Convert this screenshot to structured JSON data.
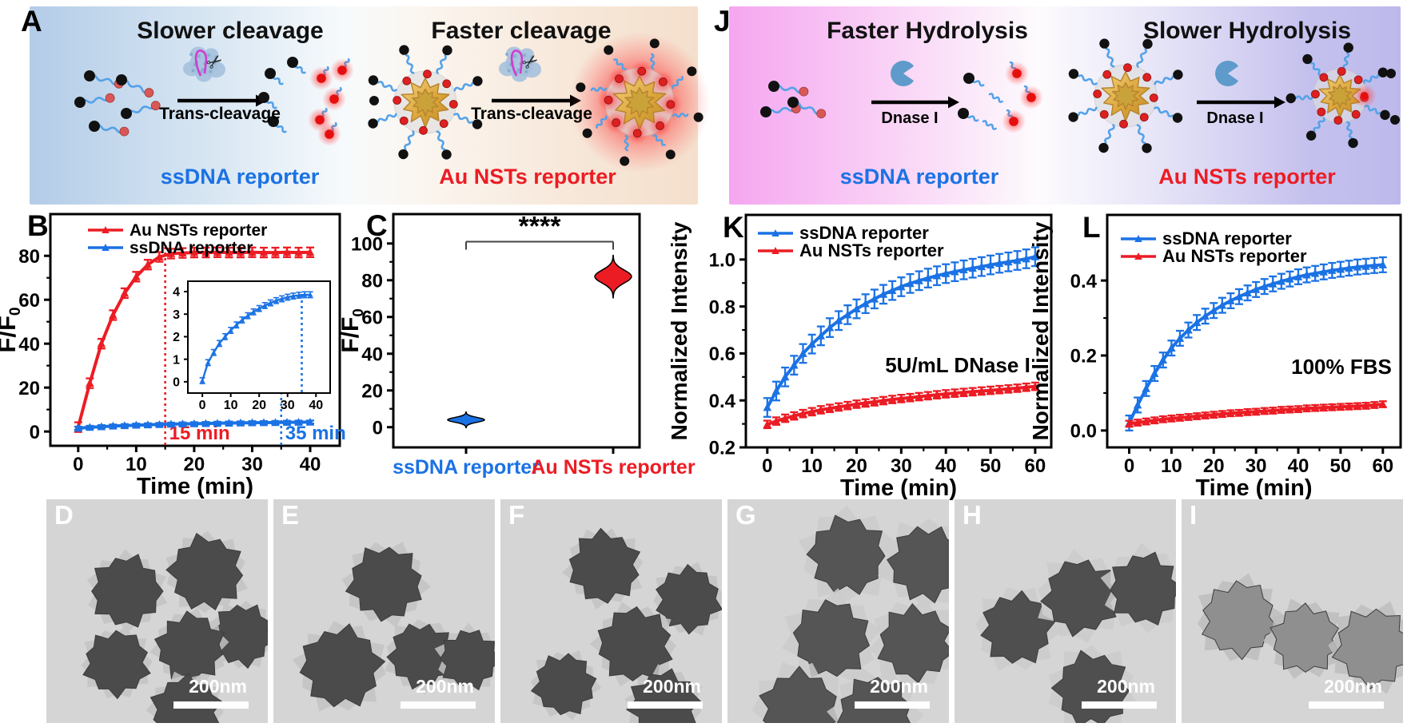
{
  "colors": {
    "blue": "#1b72e4",
    "red": "#ec1c24",
    "black": "#000000",
    "gold": "#dca63c",
    "glow_red": "#ff2020"
  },
  "panel_a": {
    "label": "A",
    "title_left": "Slower cleavage",
    "title_right": "Faster cleavage",
    "arrow_left": "Trans-cleavage",
    "arrow_right": "Trans-cleavage",
    "bottom_left": "ssDNA reporter",
    "bottom_right": "Au NSTs reporter"
  },
  "panel_j": {
    "label": "J",
    "title_left": "Faster Hydrolysis",
    "title_right": "Slower Hydrolysis",
    "arrow_left": "Dnase I",
    "arrow_right": "Dnase I",
    "bottom_left": "ssDNA reporter",
    "bottom_right": "Au NSTs reporter"
  },
  "chart_data": [
    {
      "id": "B",
      "type": "line",
      "panel_label": "B",
      "xlabel": "Time (min)",
      "ylabel": "F/F0",
      "xlim": [
        -4.8,
        45.1
      ],
      "ylim": [
        -6.5,
        99
      ],
      "xticks": [
        0,
        10,
        20,
        30,
        40
      ],
      "yticks": [
        0,
        20,
        40,
        60,
        80
      ],
      "x": [
        0,
        2,
        4,
        6,
        8,
        10,
        12,
        14,
        16,
        18,
        20,
        22,
        24,
        26,
        28,
        30,
        32,
        34,
        36,
        38,
        40
      ],
      "series": [
        {
          "name": "Au NSTs reporter",
          "color": "red",
          "values": [
            2,
            22,
            40,
            53,
            63,
            70.5,
            76,
            79.5,
            81,
            81.3,
            81.5,
            81.5,
            81.6,
            81.5,
            81.5,
            81.6,
            81.5,
            81.5,
            81.6,
            81.5,
            81.6
          ],
          "err": 2.2
        },
        {
          "name": "ssDNA reporter",
          "color": "blue",
          "values": [
            1.5,
            1.9,
            2.2,
            2.5,
            2.7,
            2.9,
            3.05,
            3.2,
            3.35,
            3.45,
            3.55,
            3.65,
            3.75,
            3.85,
            3.9,
            4.0,
            4.05,
            4.1,
            4.2,
            4.25,
            4.3
          ],
          "err": 0.7
        }
      ],
      "vlines": [
        {
          "x": 15,
          "top": 84,
          "color": "red",
          "label": "15 min"
        },
        {
          "x": 35,
          "top": 17,
          "color": "blue",
          "label": "35 min"
        }
      ],
      "legend": true
    },
    {
      "id": "B_inset",
      "type": "line",
      "panel_label": "",
      "xlabel": "",
      "ylabel": "",
      "xlim": [
        -5.1,
        45.0
      ],
      "ylim": [
        -0.5,
        4.46
      ],
      "xticks": [
        0,
        10,
        20,
        30,
        40
      ],
      "yticks": [
        0,
        1,
        2,
        3,
        4
      ],
      "x": [
        0,
        2,
        4,
        6,
        8,
        10,
        12,
        14,
        16,
        18,
        20,
        22,
        24,
        26,
        28,
        30,
        32,
        34,
        36,
        38
      ],
      "series": [
        {
          "name": "ssDNA reporter (inset)",
          "color": "blue",
          "values": [
            0.05,
            0.85,
            1.3,
            1.7,
            2.0,
            2.28,
            2.52,
            2.74,
            2.93,
            3.1,
            3.25,
            3.38,
            3.5,
            3.6,
            3.68,
            3.75,
            3.8,
            3.84,
            3.86,
            3.86
          ],
          "err": 0.13
        }
      ],
      "vlines": [
        {
          "x": 35,
          "top": 3.86,
          "color": "blue"
        }
      ]
    },
    {
      "id": "C",
      "type": "violin",
      "panel_label": "C",
      "ylabel": "F/F0",
      "ylim": [
        -11,
        116
      ],
      "yticks": [
        0,
        20,
        40,
        60,
        80,
        100
      ],
      "categories": [
        {
          "label": "ssDNA reporter",
          "color": "blue",
          "mean": 4,
          "sd": 1.3
        },
        {
          "label": "Au NSTs reporter",
          "color": "red",
          "mean": 82,
          "sd": 3.5
        }
      ],
      "significance": "****"
    },
    {
      "id": "K",
      "type": "line",
      "panel_label": "K",
      "xlabel": "Time (min)",
      "ylabel": "Normalized Intensity",
      "xlim": [
        -4.8,
        63.6
      ],
      "ylim": [
        0.2,
        1.19
      ],
      "xticks": [
        0,
        10,
        20,
        30,
        40,
        50,
        60
      ],
      "yticks": [
        0.2,
        0.4,
        0.6,
        0.8,
        1.0
      ],
      "ytick_labels": [
        "0.2",
        "0.4",
        "0.6",
        "0.8",
        "1.0"
      ],
      "x": [
        0,
        2,
        4,
        6,
        8,
        10,
        12,
        14,
        16,
        18,
        20,
        22,
        24,
        26,
        28,
        30,
        32,
        34,
        36,
        38,
        40,
        42,
        44,
        46,
        48,
        50,
        52,
        54,
        56,
        58,
        60
      ],
      "series": [
        {
          "name": "ssDNA reporter",
          "color": "blue",
          "values": [
            0.37,
            0.44,
            0.5,
            0.55,
            0.6,
            0.64,
            0.675,
            0.71,
            0.74,
            0.765,
            0.79,
            0.812,
            0.832,
            0.852,
            0.868,
            0.884,
            0.898,
            0.91,
            0.921,
            0.931,
            0.94,
            0.948,
            0.956,
            0.963,
            0.97,
            0.977,
            0.984,
            0.99,
            0.996,
            1.003,
            1.012
          ],
          "err": 0.04
        },
        {
          "name": "Au NSTs reporter",
          "color": "red",
          "values": [
            0.298,
            0.312,
            0.324,
            0.334,
            0.344,
            0.352,
            0.36,
            0.366,
            0.372,
            0.378,
            0.384,
            0.389,
            0.394,
            0.399,
            0.404,
            0.408,
            0.412,
            0.416,
            0.42,
            0.424,
            0.428,
            0.431,
            0.434,
            0.437,
            0.44,
            0.443,
            0.446,
            0.449,
            0.452,
            0.456,
            0.46
          ],
          "err": 0.016
        }
      ],
      "note": "5U/mL DNase I",
      "legend": true
    },
    {
      "id": "L",
      "type": "line",
      "panel_label": "L",
      "xlabel": "Time (min)",
      "ylabel": "Normalized Intensity",
      "xlim": [
        -5.2,
        64.2
      ],
      "ylim": [
        -0.045,
        0.575
      ],
      "xticks": [
        0,
        10,
        20,
        30,
        40,
        50,
        60
      ],
      "yticks": [
        0.0,
        0.2,
        0.4
      ],
      "ytick_labels": [
        "0.0",
        "0.2",
        "0.4"
      ],
      "x": [
        0,
        2,
        4,
        6,
        8,
        10,
        12,
        14,
        16,
        18,
        20,
        22,
        24,
        26,
        28,
        30,
        32,
        34,
        36,
        38,
        40,
        42,
        44,
        46,
        48,
        50,
        52,
        54,
        56,
        58,
        60
      ],
      "series": [
        {
          "name": "ssDNA reporter",
          "color": "blue",
          "values": [
            0.02,
            0.068,
            0.112,
            0.152,
            0.188,
            0.22,
            0.246,
            0.268,
            0.288,
            0.305,
            0.32,
            0.334,
            0.346,
            0.357,
            0.367,
            0.376,
            0.384,
            0.391,
            0.398,
            0.404,
            0.41,
            0.415,
            0.419,
            0.423,
            0.427,
            0.43,
            0.433,
            0.436,
            0.438,
            0.44,
            0.442
          ],
          "err": 0.02
        },
        {
          "name": "Au NSTs reporter",
          "color": "red",
          "values": [
            0.018,
            0.021,
            0.024,
            0.027,
            0.03,
            0.032,
            0.034,
            0.036,
            0.038,
            0.04,
            0.042,
            0.044,
            0.046,
            0.047,
            0.049,
            0.05,
            0.052,
            0.053,
            0.055,
            0.056,
            0.057,
            0.059,
            0.06,
            0.061,
            0.062,
            0.063,
            0.064,
            0.065,
            0.066,
            0.068,
            0.07
          ],
          "err": 0.008
        }
      ],
      "note": "100% FBS",
      "legend": true
    }
  ],
  "tem": {
    "panels": [
      {
        "label": "D",
        "scale": "200nm"
      },
      {
        "label": "E",
        "scale": "200nm"
      },
      {
        "label": "F",
        "scale": "200nm"
      },
      {
        "label": "G",
        "scale": "200nm"
      },
      {
        "label": "H",
        "scale": "200nm"
      },
      {
        "label": "I",
        "scale": "200nm"
      }
    ]
  }
}
